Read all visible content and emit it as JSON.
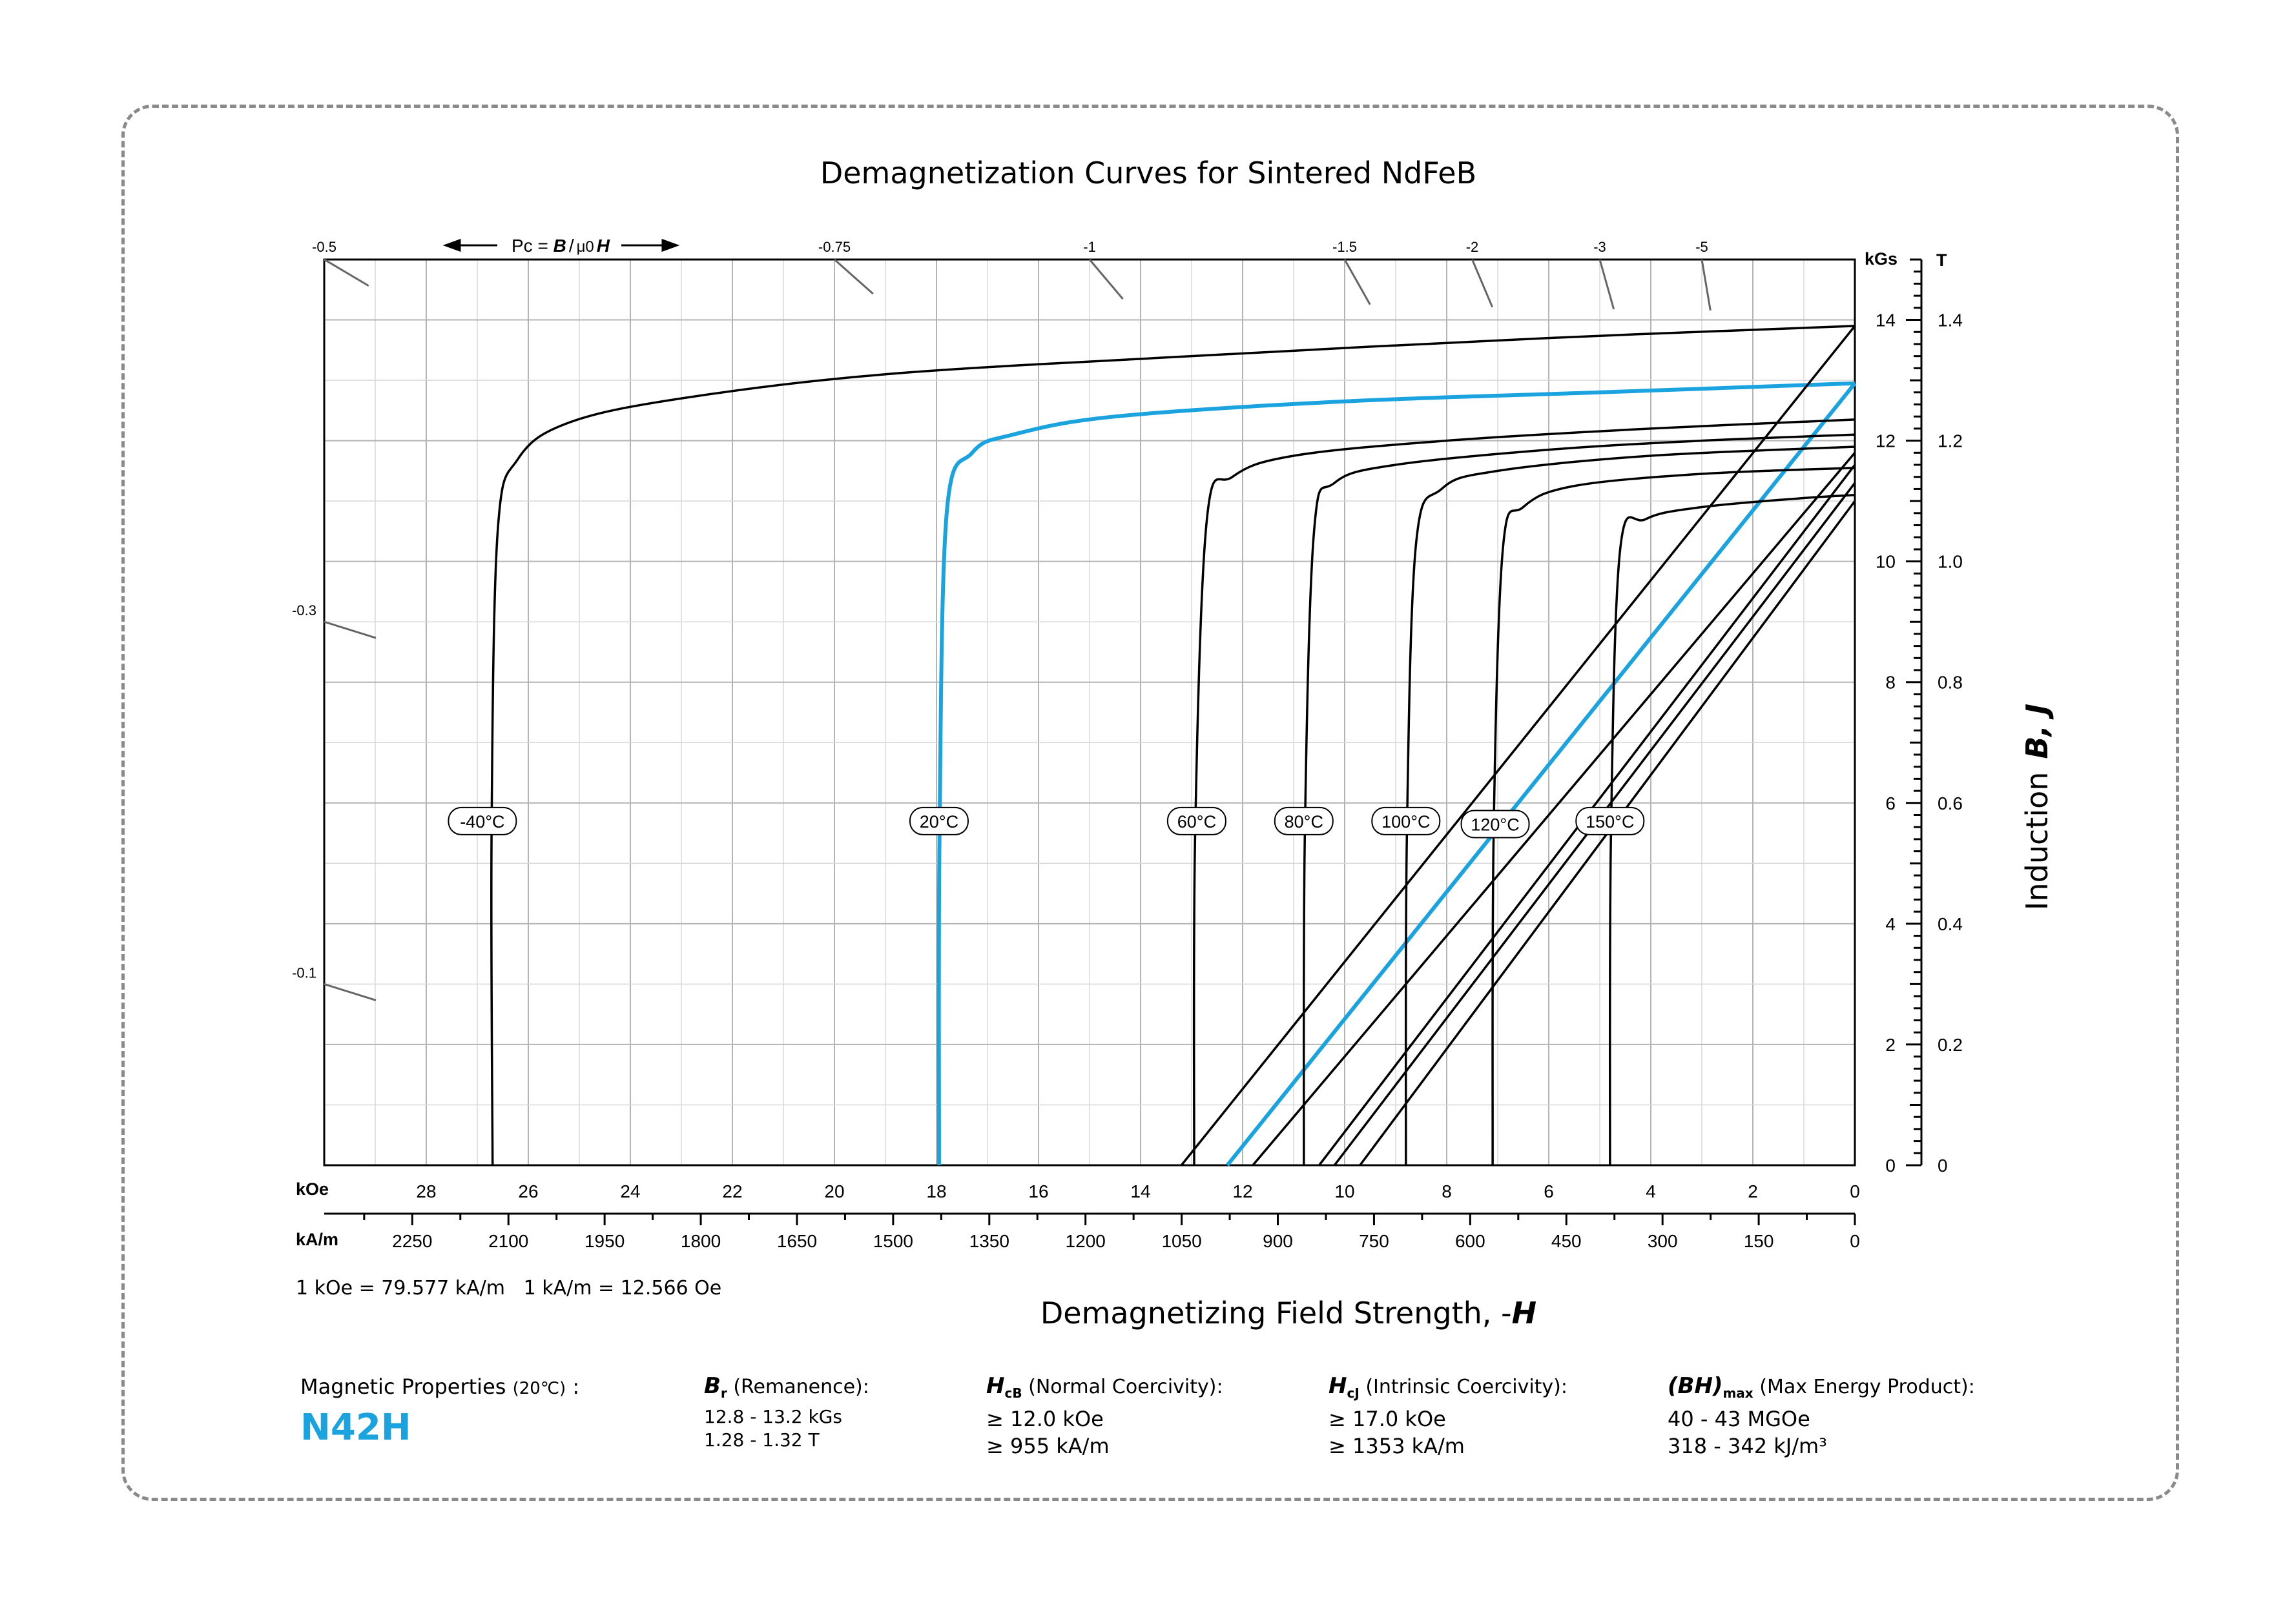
{
  "chart_data": {
    "type": "line",
    "title": "Demagnetization Curves for Sintered NdFeB",
    "xlabel": "Demagnetizing Field Strength, -H",
    "xlabel_prefix": "Demagnetizing Field Strength, -",
    "xlabel_symbol": "H",
    "ylabel": "Induction B, J",
    "ylabel_prefix": "Induction",
    "ylabel_symbols": "B, J",
    "x_unit_primary": "kOe",
    "x_unit_secondary": "kA/m",
    "y_unit_primary": "kGs",
    "y_unit_secondary": "T",
    "x_reversed": true,
    "xlim": [
      30,
      0
    ],
    "ylim": [
      0,
      15
    ],
    "x_ticks_koe": [
      28,
      26,
      24,
      22,
      20,
      18,
      16,
      14,
      12,
      10,
      8,
      6,
      4,
      2,
      0
    ],
    "x_ticks_kam": [
      2250,
      2100,
      1950,
      1800,
      1650,
      1500,
      1350,
      1200,
      1050,
      900,
      750,
      600,
      450,
      300,
      150,
      0
    ],
    "y_ticks_kgs": [
      0,
      2,
      4,
      6,
      8,
      10,
      12,
      14
    ],
    "y_ticks_t": [
      "0",
      "0.2",
      "0.4",
      "0.6",
      "0.8",
      "1.0",
      "1.2",
      "1.4"
    ],
    "conversion_note": "1 kOe = 79.577 kA/m   1 kA/m = 12.566 Oe",
    "pc_label_prefix": "Pc = ",
    "pc_label_b": "B",
    "pc_label_mu": "μ0",
    "pc_label_h": "H",
    "pc_ticks_top": [
      {
        "label": "-0.5",
        "b": 15,
        "h": 30
      },
      {
        "label": "-0.75",
        "b": 15,
        "h": 20
      },
      {
        "label": "-1",
        "b": 15,
        "h": 15
      },
      {
        "label": "-1.5",
        "b": 15,
        "h": 10
      },
      {
        "label": "-2",
        "b": 15,
        "h": 7.5
      },
      {
        "label": "-3",
        "b": 15,
        "h": 5
      },
      {
        "label": "-5",
        "b": 15,
        "h": 3
      }
    ],
    "pc_ticks_left": [
      {
        "label": "-0.3",
        "b": 9,
        "h": 30
      },
      {
        "label": "-0.1",
        "b": 3,
        "h": 30
      }
    ],
    "series": [
      {
        "name": "-40°C",
        "color": "#000000",
        "label_at": [
          26.9,
          5.7
        ],
        "J": [
          [
            26.7,
            0
          ],
          [
            26.72,
            5.5
          ],
          [
            26.6,
            10.5
          ],
          [
            26.2,
            11.7
          ],
          [
            25.2,
            12.3
          ],
          [
            23.0,
            12.7
          ],
          [
            19.0,
            13.1
          ],
          [
            13.0,
            13.4
          ],
          [
            6.0,
            13.7
          ],
          [
            0,
            13.9
          ]
        ],
        "B": []
      },
      {
        "name": "20°C",
        "color": "#1ba3df",
        "label_at": [
          17.95,
          5.7
        ],
        "J": [
          [
            17.95,
            0
          ],
          [
            17.94,
            5.5
          ],
          [
            17.8,
            10.8
          ],
          [
            17.3,
            11.8
          ],
          [
            16.5,
            12.1
          ],
          [
            14.5,
            12.4
          ],
          [
            10.0,
            12.65
          ],
          [
            5.0,
            12.8
          ],
          [
            0,
            12.95
          ]
        ],
        "B": [
          [
            12.3,
            0
          ],
          [
            0,
            12.95
          ]
        ]
      },
      {
        "name": "60°C",
        "color": "#000000",
        "label_at": [
          12.9,
          5.7
        ],
        "J": [
          [
            12.95,
            0
          ],
          [
            12.93,
            5.5
          ],
          [
            12.7,
            10.7
          ],
          [
            12.2,
            11.4
          ],
          [
            11.0,
            11.75
          ],
          [
            8.0,
            12.0
          ],
          [
            4.0,
            12.2
          ],
          [
            0,
            12.35
          ]
        ],
        "B": [
          [
            13.2,
            0
          ],
          [
            0,
            13.9
          ]
        ]
      },
      {
        "name": "80°C",
        "color": "#000000",
        "label_at": [
          10.8,
          5.7
        ],
        "J": [
          [
            10.8,
            0
          ],
          [
            10.78,
            5.5
          ],
          [
            10.6,
            10.5
          ],
          [
            10.2,
            11.3
          ],
          [
            9.0,
            11.6
          ],
          [
            6.0,
            11.85
          ],
          [
            3.0,
            12.0
          ],
          [
            0,
            12.1
          ]
        ],
        "B": [
          [
            11.8,
            0
          ],
          [
            0,
            11.8
          ]
        ]
      },
      {
        "name": "100°C",
        "color": "#000000",
        "label_at": [
          8.8,
          5.7
        ],
        "J": [
          [
            8.8,
            0
          ],
          [
            8.78,
            5.5
          ],
          [
            8.6,
            10.3
          ],
          [
            8.1,
            11.2
          ],
          [
            7.0,
            11.5
          ],
          [
            4.0,
            11.75
          ],
          [
            0,
            11.9
          ]
        ],
        "B": [
          [
            10.5,
            0
          ],
          [
            0,
            11.6
          ]
        ]
      },
      {
        "name": "120°C",
        "color": "#000000",
        "label_at": [
          7.05,
          5.65
        ],
        "J": [
          [
            7.1,
            0
          ],
          [
            7.08,
            5.5
          ],
          [
            6.9,
            10.2
          ],
          [
            6.5,
            10.9
          ],
          [
            5.5,
            11.25
          ],
          [
            3.0,
            11.45
          ],
          [
            0,
            11.55
          ]
        ],
        "B": [
          [
            10.2,
            0
          ],
          [
            0,
            11.3
          ]
        ]
      },
      {
        "name": "150°C",
        "color": "#000000",
        "label_at": [
          4.8,
          5.7
        ],
        "J": [
          [
            4.8,
            0
          ],
          [
            4.78,
            5.5
          ],
          [
            4.6,
            10.2
          ],
          [
            4.1,
            10.7
          ],
          [
            3.0,
            10.9
          ],
          [
            1.0,
            11.05
          ],
          [
            0,
            11.1
          ]
        ],
        "B": [
          [
            9.7,
            0
          ],
          [
            0,
            11.0
          ]
        ]
      }
    ]
  },
  "properties": {
    "heading": "Magnetic Properties",
    "heading_temp": "(20℃)",
    "heading_colon": " :",
    "grade": "N42H",
    "br": {
      "symbol": "B",
      "sub": "r",
      "label": "(Remanence):",
      "v1": "12.8 - 13.2 kGs",
      "v2": "1.28 - 1.32 T"
    },
    "hcb": {
      "symbol": "H",
      "sub": "cB",
      "label": "(Normal Coercivity):",
      "v1": "≥ 12.0 kOe",
      "v2": "≥ 955 kA/m"
    },
    "hcj": {
      "symbol": "H",
      "sub": "cJ",
      "label": "(Intrinsic Coercivity):",
      "v1": "≥ 17.0 kOe",
      "v2": "≥ 1353 kA/m"
    },
    "bhmax": {
      "symbol": "(BH)",
      "sub": "max",
      "label": "(Max Energy Product):",
      "v1": "40 - 43 MGOe",
      "v2": "318 - 342 kJ/m³"
    }
  },
  "colors": {
    "accent": "#1ba3df",
    "curve": "#000000",
    "grid_major": "#b4b4b4",
    "grid_minor": "#d8d8d8"
  }
}
